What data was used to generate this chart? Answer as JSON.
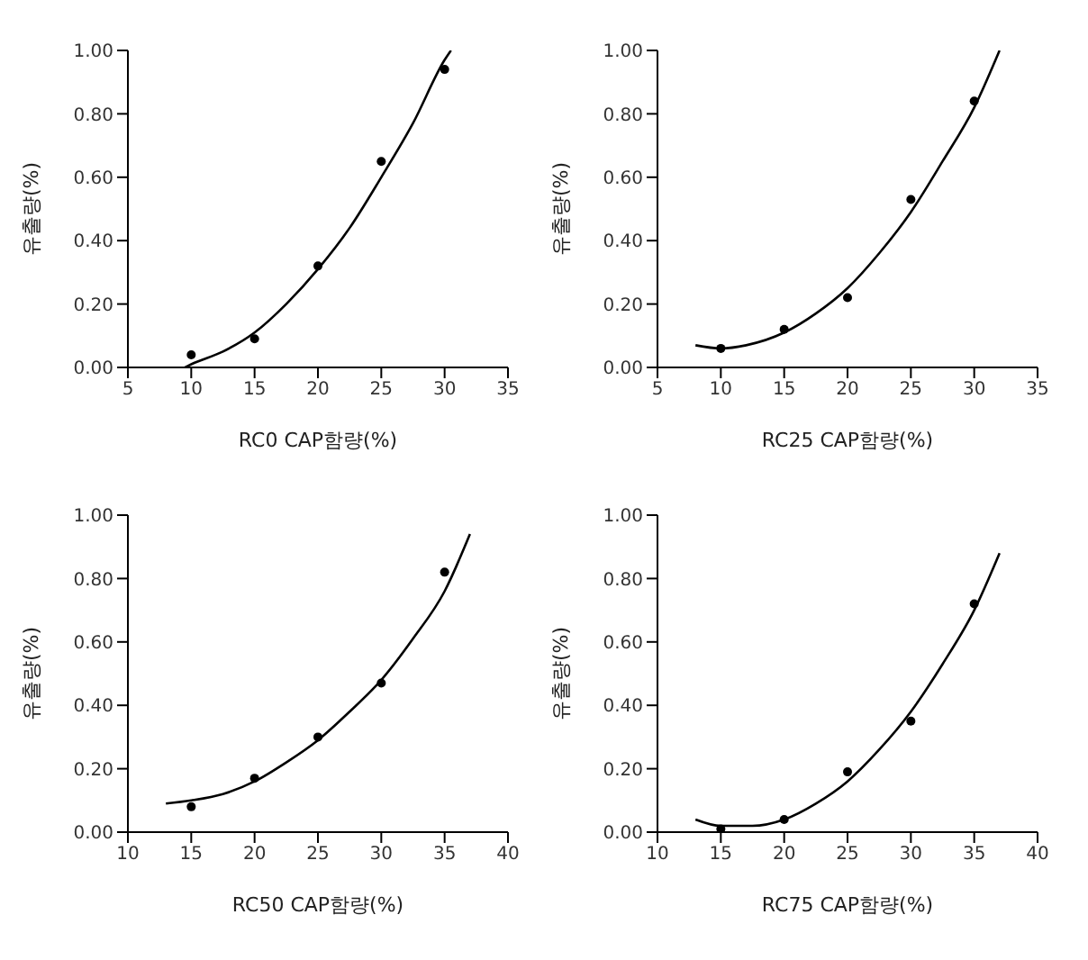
{
  "chart_data": [
    {
      "type": "scatter",
      "xlabel": "RC0 CAP함량(%)",
      "ylabel": "유출량(%)",
      "xlim": [
        5,
        35
      ],
      "xticks": [
        5,
        10,
        15,
        20,
        25,
        30,
        35
      ],
      "ylim": [
        0,
        1
      ],
      "yticks": [
        {
          "value": 0,
          "label": "0.00"
        },
        {
          "value": 0.2,
          "label": "0.20"
        },
        {
          "value": 0.4,
          "label": "0.40"
        },
        {
          "value": 0.6,
          "label": "0.60"
        },
        {
          "value": 0.8,
          "label": "0.80"
        },
        {
          "value": 1,
          "label": "1.00"
        }
      ],
      "series": [
        {
          "marker": "circle",
          "color": "#000000",
          "x": [
            10,
            15,
            20,
            25,
            30
          ],
          "values": [
            0.04,
            0.09,
            0.32,
            0.65,
            0.94
          ]
        },
        {
          "type": "line",
          "marker": "none",
          "line_style": "solid",
          "color": "#000000",
          "x": [
            9.5,
            10,
            12.5,
            15,
            17.5,
            20,
            22.5,
            25,
            27.5,
            30,
            30.5
          ],
          "values": [
            0,
            0.01,
            0.05,
            0.11,
            0.2,
            0.31,
            0.44,
            0.6,
            0.77,
            0.97,
            1.0
          ]
        }
      ]
    },
    {
      "type": "scatter",
      "xlabel": "RC25 CAP함량(%)",
      "ylabel": "유출량(%)",
      "xlim": [
        5,
        35
      ],
      "xticks": [
        5,
        10,
        15,
        20,
        25,
        30,
        35
      ],
      "ylim": [
        0,
        1
      ],
      "yticks": [
        {
          "value": 0,
          "label": "0.00"
        },
        {
          "value": 0.2,
          "label": "0.20"
        },
        {
          "value": 0.4,
          "label": "0.40"
        },
        {
          "value": 0.6,
          "label": "0.60"
        },
        {
          "value": 0.8,
          "label": "0.80"
        },
        {
          "value": 1,
          "label": "1.00"
        }
      ],
      "series": [
        {
          "marker": "circle",
          "color": "#000000",
          "x": [
            10,
            15,
            20,
            25,
            30
          ],
          "values": [
            0.06,
            0.12,
            0.22,
            0.53,
            0.84
          ]
        },
        {
          "type": "line",
          "marker": "none",
          "line_style": "solid",
          "color": "#000000",
          "x": [
            8,
            10,
            12,
            15,
            17.5,
            20,
            22.5,
            25,
            27.5,
            30,
            32
          ],
          "values": [
            0.07,
            0.06,
            0.07,
            0.11,
            0.17,
            0.25,
            0.36,
            0.49,
            0.65,
            0.82,
            1.0
          ]
        }
      ]
    },
    {
      "type": "scatter",
      "xlabel": "RC50 CAP함량(%)",
      "ylabel": "유출량(%)",
      "xlim": [
        10,
        40
      ],
      "xticks": [
        10,
        15,
        20,
        25,
        30,
        35,
        40
      ],
      "ylim": [
        0,
        1
      ],
      "yticks": [
        {
          "value": 0,
          "label": "0.00"
        },
        {
          "value": 0.2,
          "label": "0.20"
        },
        {
          "value": 0.4,
          "label": "0.40"
        },
        {
          "value": 0.6,
          "label": "0.60"
        },
        {
          "value": 0.8,
          "label": "0.80"
        },
        {
          "value": 1,
          "label": "1.00"
        }
      ],
      "series": [
        {
          "marker": "circle",
          "color": "#000000",
          "x": [
            15,
            20,
            25,
            30,
            35
          ],
          "values": [
            0.08,
            0.17,
            0.3,
            0.47,
            0.82
          ]
        },
        {
          "type": "line",
          "marker": "none",
          "line_style": "solid",
          "color": "#000000",
          "x": [
            13,
            15,
            17.5,
            20,
            22.5,
            25,
            27.5,
            30,
            32.5,
            35,
            37
          ],
          "values": [
            0.09,
            0.1,
            0.12,
            0.16,
            0.22,
            0.29,
            0.38,
            0.48,
            0.61,
            0.76,
            0.94
          ]
        }
      ]
    },
    {
      "type": "scatter",
      "xlabel": "RC75 CAP함량(%)",
      "ylabel": "유출량(%)",
      "xlim": [
        10,
        40
      ],
      "xticks": [
        10,
        15,
        20,
        25,
        30,
        35,
        40
      ],
      "ylim": [
        0,
        1
      ],
      "yticks": [
        {
          "value": 0,
          "label": "0.00"
        },
        {
          "value": 0.2,
          "label": "0.20"
        },
        {
          "value": 0.4,
          "label": "0.40"
        },
        {
          "value": 0.6,
          "label": "0.60"
        },
        {
          "value": 0.8,
          "label": "0.80"
        },
        {
          "value": 1,
          "label": "1.00"
        }
      ],
      "series": [
        {
          "marker": "circle",
          "color": "#000000",
          "x": [
            15,
            20,
            25,
            30,
            35
          ],
          "values": [
            0.01,
            0.04,
            0.19,
            0.35,
            0.72
          ]
        },
        {
          "type": "line",
          "marker": "none",
          "line_style": "solid",
          "color": "#000000",
          "x": [
            13,
            15,
            17.5,
            20,
            22.5,
            25,
            27.5,
            30,
            32.5,
            35,
            37
          ],
          "values": [
            0.04,
            0.02,
            0.02,
            0.04,
            0.09,
            0.16,
            0.26,
            0.38,
            0.53,
            0.7,
            0.88
          ]
        }
      ]
    }
  ]
}
